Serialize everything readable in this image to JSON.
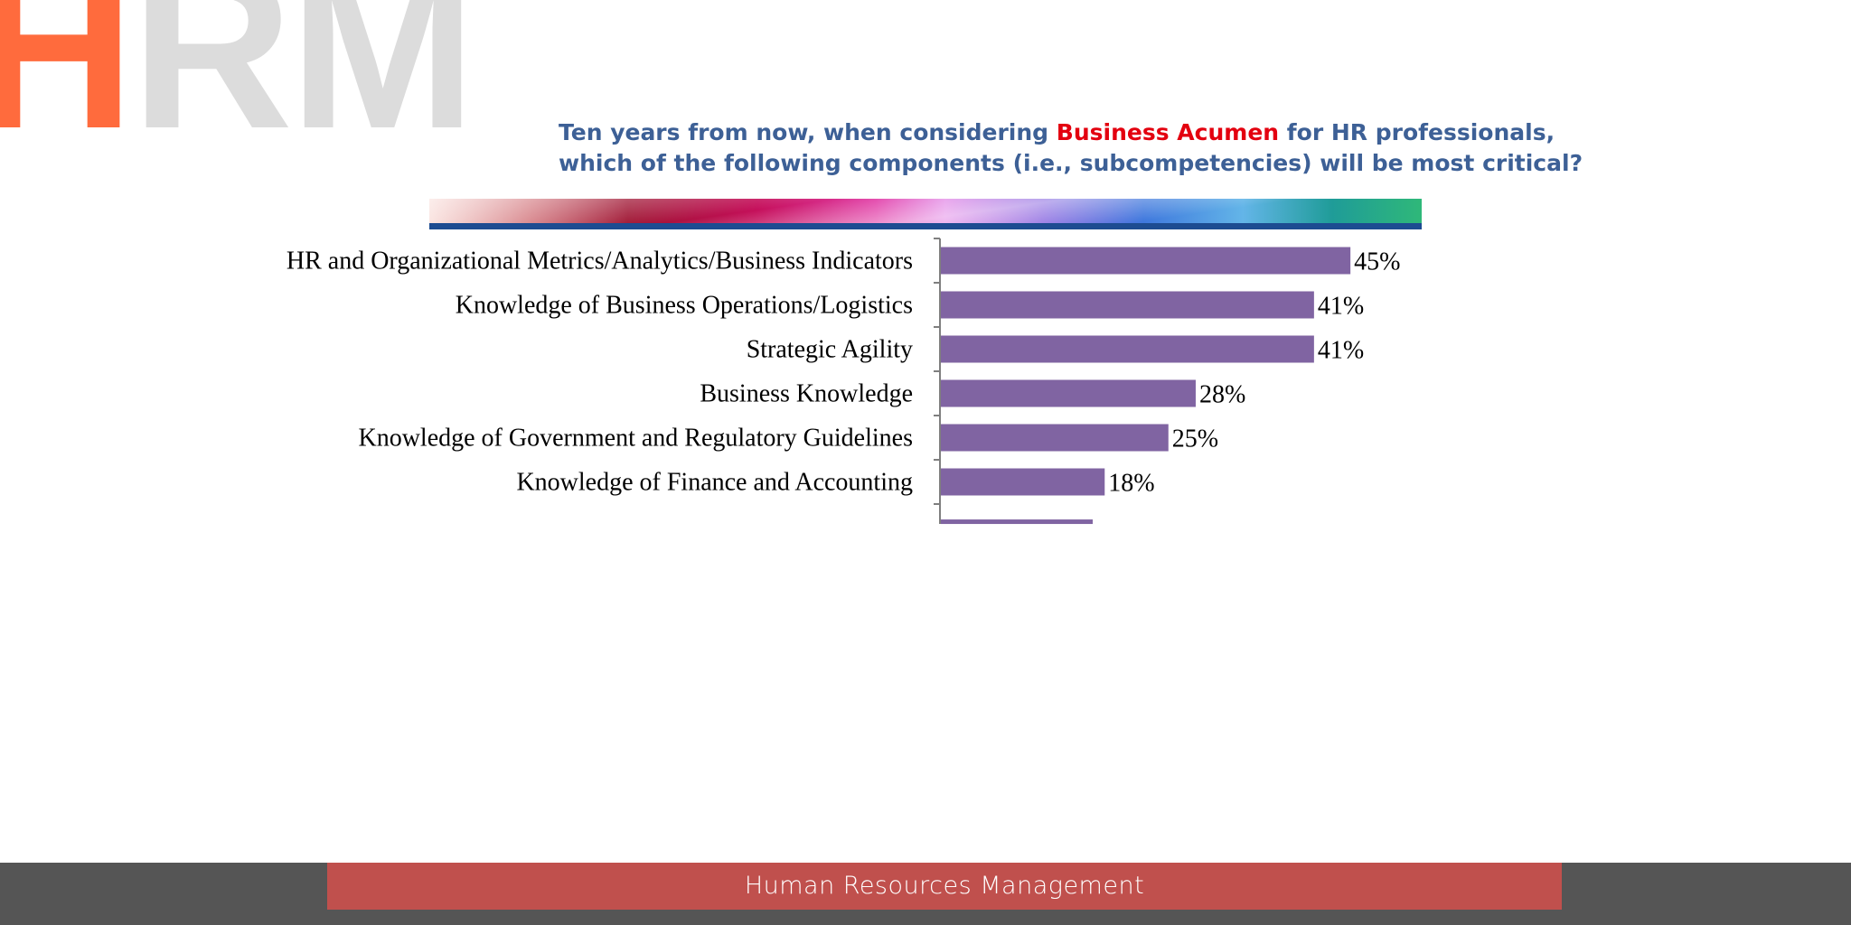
{
  "logo": {
    "first": "H",
    "rest": "RM",
    "colors": {
      "first": "#ff6b3d",
      "rest": "#dcdcdc"
    }
  },
  "title": {
    "before": "Ten years from now, when considering ",
    "highlight": "Business Acumen",
    "after": " for HR professionals, which of the following components (i.e., subcompetencies) will be most critical?",
    "color": "#3d6096",
    "highlight_color": "#e3000f"
  },
  "footer": {
    "label": "Human Resources Management",
    "band_color": "#c0504d",
    "bar_color": "#555555"
  },
  "chart_data": {
    "type": "bar",
    "orientation": "horizontal",
    "categories": [
      "HR and Organizational Metrics/Analytics/Business Indicators",
      "Knowledge of Business Operations/Logistics",
      "Strategic Agility",
      "Business Knowledge",
      "Knowledge of Government and Regulatory Guidelines",
      "Knowledge of Finance and Accounting"
    ],
    "values": [
      45,
      41,
      41,
      28,
      25,
      18
    ],
    "value_labels": [
      "45%",
      "41%",
      "41%",
      "28%",
      "25%",
      "18%"
    ],
    "partial_bar_below_last": true,
    "unit": "%",
    "bar_color": "#8064a2",
    "legend": false,
    "grid": false
  }
}
